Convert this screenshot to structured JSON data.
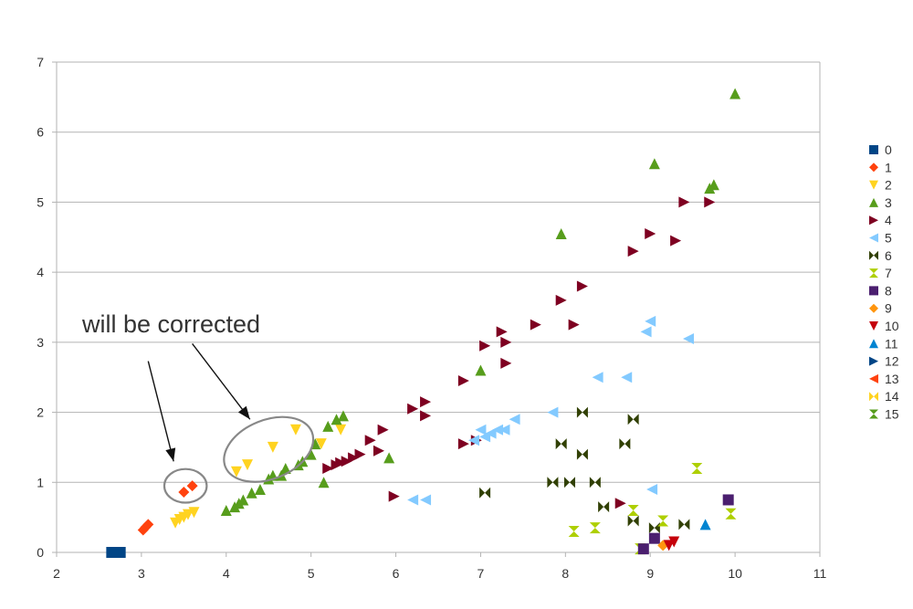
{
  "chart_data": {
    "type": "scatter",
    "xlim": [
      2,
      11
    ],
    "ylim": [
      0,
      7
    ],
    "x_ticks": [
      "2",
      "3",
      "4",
      "5",
      "6",
      "7",
      "8",
      "9",
      "10",
      "11"
    ],
    "y_ticks": [
      "0",
      "1",
      "2",
      "3",
      "4",
      "5",
      "6",
      "7"
    ],
    "grid": {
      "horizontal": true,
      "vertical": false
    },
    "legend_position": "right",
    "annotation": {
      "text": "will be corrected",
      "ellipses": [
        {
          "center": [
            3.52,
            0.95
          ],
          "radius": [
            0.25,
            0.24
          ]
        },
        {
          "center": [
            4.5,
            1.47
          ],
          "radius": [
            0.55,
            0.42
          ]
        }
      ],
      "arrows": [
        {
          "from": [
            3.08,
            2.73
          ],
          "to": [
            3.38,
            1.3
          ]
        },
        {
          "from": [
            3.6,
            2.98
          ],
          "to": [
            4.28,
            1.9
          ]
        }
      ]
    },
    "series": [
      {
        "name": "0",
        "color": "#004586",
        "marker": "square",
        "points": [
          [
            2.65,
            0
          ],
          [
            2.75,
            0
          ]
        ]
      },
      {
        "name": "1",
        "color": "#ff420e",
        "marker": "diamond",
        "points": [
          [
            3.02,
            0.32
          ],
          [
            3.05,
            0.36
          ],
          [
            3.08,
            0.4
          ],
          [
            3.5,
            0.86
          ],
          [
            3.6,
            0.95
          ]
        ]
      },
      {
        "name": "2",
        "color": "#ffd320",
        "marker": "triangle-down",
        "points": [
          [
            3.4,
            0.42
          ],
          [
            3.45,
            0.47
          ],
          [
            3.5,
            0.5
          ],
          [
            3.55,
            0.54
          ],
          [
            3.62,
            0.57
          ],
          [
            4.12,
            1.15
          ],
          [
            4.25,
            1.25
          ],
          [
            4.55,
            1.5
          ],
          [
            4.82,
            1.75
          ],
          [
            5.12,
            1.55
          ],
          [
            5.35,
            1.75
          ]
        ]
      },
      {
        "name": "3",
        "color": "#579d1c",
        "marker": "triangle-up",
        "points": [
          [
            4.0,
            0.6
          ],
          [
            4.1,
            0.65
          ],
          [
            4.15,
            0.7
          ],
          [
            4.2,
            0.75
          ],
          [
            4.3,
            0.85
          ],
          [
            4.4,
            0.9
          ],
          [
            4.5,
            1.05
          ],
          [
            4.55,
            1.1
          ],
          [
            4.65,
            1.1
          ],
          [
            4.7,
            1.2
          ],
          [
            4.85,
            1.25
          ],
          [
            4.9,
            1.3
          ],
          [
            5.0,
            1.4
          ],
          [
            5.05,
            1.55
          ],
          [
            5.15,
            1.0
          ],
          [
            5.2,
            1.8
          ],
          [
            5.3,
            1.9
          ],
          [
            5.38,
            1.95
          ],
          [
            5.92,
            1.35
          ],
          [
            7.0,
            2.6
          ],
          [
            7.95,
            4.55
          ],
          [
            9.05,
            5.55
          ],
          [
            9.7,
            5.2
          ],
          [
            9.75,
            5.25
          ],
          [
            10.0,
            6.55
          ]
        ]
      },
      {
        "name": "4",
        "color": "#7e0021",
        "marker": "triangle-right",
        "points": [
          [
            5.2,
            1.2
          ],
          [
            5.3,
            1.25
          ],
          [
            5.35,
            1.28
          ],
          [
            5.42,
            1.3
          ],
          [
            5.5,
            1.35
          ],
          [
            5.58,
            1.4
          ],
          [
            5.7,
            1.6
          ],
          [
            5.8,
            1.45
          ],
          [
            5.85,
            1.75
          ],
          [
            5.98,
            0.8
          ],
          [
            6.2,
            2.05
          ],
          [
            6.35,
            2.15
          ],
          [
            6.35,
            1.95
          ],
          [
            6.8,
            2.45
          ],
          [
            6.8,
            1.55
          ],
          [
            6.95,
            1.6
          ],
          [
            7.05,
            2.95
          ],
          [
            7.25,
            3.15
          ],
          [
            7.3,
            3.0
          ],
          [
            7.3,
            2.7
          ],
          [
            7.65,
            3.25
          ],
          [
            7.95,
            3.6
          ],
          [
            8.1,
            3.25
          ],
          [
            8.2,
            3.8
          ],
          [
            8.65,
            0.7
          ],
          [
            8.8,
            4.3
          ],
          [
            9.0,
            4.55
          ],
          [
            9.3,
            4.45
          ],
          [
            9.4,
            5.0
          ],
          [
            9.7,
            5.0
          ]
        ]
      },
      {
        "name": "5",
        "color": "#83caff",
        "marker": "triangle-left",
        "points": [
          [
            6.2,
            0.75
          ],
          [
            6.35,
            0.75
          ],
          [
            6.92,
            1.6
          ],
          [
            7.0,
            1.75
          ],
          [
            7.05,
            1.65
          ],
          [
            7.12,
            1.7
          ],
          [
            7.2,
            1.75
          ],
          [
            7.28,
            1.75
          ],
          [
            7.4,
            1.9
          ],
          [
            7.85,
            2.0
          ],
          [
            8.38,
            2.5
          ],
          [
            8.72,
            2.5
          ],
          [
            8.95,
            3.15
          ],
          [
            9.0,
            3.3
          ],
          [
            9.02,
            0.9
          ],
          [
            9.45,
            3.05
          ]
        ]
      },
      {
        "name": "6",
        "color": "#314004",
        "marker": "bowtie",
        "points": [
          [
            7.05,
            0.85
          ],
          [
            7.85,
            1.0
          ],
          [
            7.95,
            1.55
          ],
          [
            8.05,
            1.0
          ],
          [
            8.2,
            2.0
          ],
          [
            8.2,
            1.4
          ],
          [
            8.35,
            1.0
          ],
          [
            8.45,
            0.65
          ],
          [
            8.7,
            1.55
          ],
          [
            8.8,
            1.9
          ],
          [
            8.8,
            0.45
          ],
          [
            9.05,
            0.35
          ],
          [
            9.4,
            0.4
          ]
        ]
      },
      {
        "name": "7",
        "color": "#aecf00",
        "marker": "hourglass",
        "points": [
          [
            8.1,
            0.3
          ],
          [
            8.35,
            0.35
          ],
          [
            8.8,
            0.6
          ],
          [
            8.88,
            0.05
          ],
          [
            9.15,
            0.45
          ],
          [
            9.55,
            1.2
          ],
          [
            9.95,
            0.55
          ]
        ]
      },
      {
        "name": "8",
        "color": "#4b1f6f",
        "marker": "square",
        "points": [
          [
            8.92,
            0.05
          ],
          [
            9.05,
            0.2
          ],
          [
            9.92,
            0.75
          ]
        ]
      },
      {
        "name": "9",
        "color": "#ff950e",
        "marker": "diamond",
        "points": [
          [
            9.15,
            0.1
          ]
        ]
      },
      {
        "name": "10",
        "color": "#c5000b",
        "marker": "triangle-down",
        "points": [
          [
            9.22,
            0.1
          ],
          [
            9.28,
            0.15
          ]
        ]
      },
      {
        "name": "11",
        "color": "#0084d1",
        "marker": "triangle-up",
        "points": [
          [
            9.65,
            0.4
          ]
        ]
      },
      {
        "name": "12",
        "color": "#004586",
        "marker": "triangle-right",
        "points": []
      },
      {
        "name": "13",
        "color": "#ff420e",
        "marker": "triangle-left",
        "points": []
      },
      {
        "name": "14",
        "color": "#ffd320",
        "marker": "bowtie",
        "points": []
      },
      {
        "name": "15",
        "color": "#579d1c",
        "marker": "hourglass",
        "points": []
      }
    ]
  }
}
